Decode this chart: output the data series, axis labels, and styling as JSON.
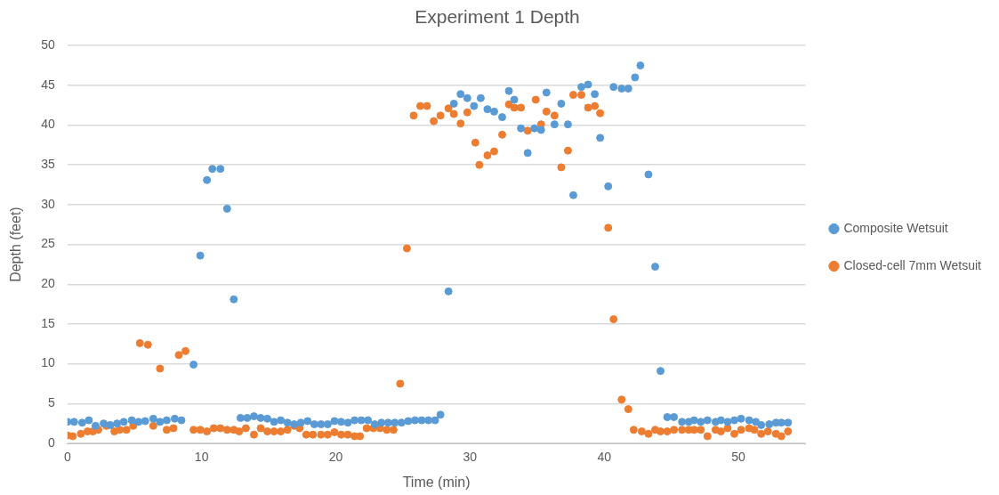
{
  "chart_data": {
    "type": "scatter",
    "title": "Experiment 1 Depth",
    "xlabel": "Time (min)",
    "ylabel": "Depth (feet)",
    "xlim": [
      0,
      55
    ],
    "xticks": [
      0,
      10,
      20,
      30,
      40,
      50
    ],
    "ylim": [
      0,
      50
    ],
    "yticks": [
      0,
      5,
      10,
      15,
      20,
      25,
      30,
      35,
      40,
      45,
      50
    ],
    "grid": "y",
    "legend": "right",
    "marker": "circle",
    "series": [
      {
        "name": "Composite Wetsuit",
        "color": "#5b9bd5",
        "x": [
          0,
          0.5,
          1.1,
          1.6,
          2.1,
          2.7,
          3.2,
          3.7,
          4.2,
          4.8,
          5.3,
          5.8,
          6.4,
          6.9,
          7.4,
          8.0,
          8.5,
          9.4,
          9.9,
          10.4,
          10.8,
          11.4,
          11.9,
          12.4,
          12.9,
          13.4,
          13.9,
          14.4,
          14.9,
          15.4,
          15.9,
          16.4,
          16.9,
          17.4,
          17.9,
          18.4,
          18.9,
          19.4,
          19.9,
          20.4,
          20.9,
          21.4,
          21.9,
          22.4,
          22.9,
          23.4,
          23.9,
          24.4,
          24.9,
          25.4,
          25.9,
          26.4,
          26.9,
          27.4,
          27.8,
          28.4,
          28.8,
          29.3,
          29.8,
          30.3,
          30.8,
          31.3,
          31.8,
          32.4,
          32.9,
          33.3,
          33.8,
          34.3,
          34.8,
          35.3,
          35.7,
          36.3,
          36.8,
          37.3,
          37.7,
          38.3,
          38.8,
          39.3,
          39.7,
          40.3,
          40.7,
          41.3,
          41.8,
          42.3,
          42.7,
          43.3,
          43.8,
          44.2,
          44.7,
          45.2,
          45.8,
          46.3,
          46.7,
          47.2,
          47.7,
          48.3,
          48.7,
          49.2,
          49.7,
          50.2,
          50.8,
          51.3,
          51.7,
          52.3,
          52.8,
          53.2,
          53.7
        ],
        "values": [
          2.7,
          2.7,
          2.6,
          2.9,
          2.2,
          2.5,
          2.3,
          2.5,
          2.7,
          2.9,
          2.7,
          2.8,
          3.1,
          2.7,
          2.9,
          3.1,
          2.9,
          9.9,
          23.6,
          33.1,
          34.5,
          34.5,
          29.5,
          18.1,
          3.2,
          3.2,
          3.4,
          3.2,
          3.1,
          2.7,
          2.9,
          2.6,
          2.4,
          2.6,
          2.8,
          2.4,
          2.4,
          2.4,
          2.8,
          2.7,
          2.6,
          2.9,
          2.9,
          2.9,
          2.4,
          2.6,
          2.6,
          2.6,
          2.6,
          2.8,
          2.9,
          2.9,
          2.9,
          2.9,
          3.6,
          19.1,
          42.7,
          43.9,
          43.4,
          42.4,
          43.4,
          42.0,
          41.7,
          41.0,
          44.3,
          43.2,
          39.6,
          36.5,
          39.6,
          39.4,
          44.1,
          40.1,
          42.7,
          40.1,
          31.2,
          44.8,
          45.1,
          43.9,
          38.4,
          32.3,
          44.8,
          44.6,
          44.6,
          46.0,
          47.5,
          33.8,
          22.2,
          9.1,
          3.3,
          3.3,
          2.7,
          2.7,
          2.9,
          2.7,
          2.9,
          2.7,
          2.9,
          2.7,
          2.9,
          3.1,
          2.9,
          2.7,
          2.3,
          2.4,
          2.6,
          2.6,
          2.6
        ]
      },
      {
        "name": "Closed-cell 7mm Wetsuit",
        "color": "#ed7d31",
        "x": [
          0,
          0.4,
          1.0,
          1.5,
          1.9,
          2.3,
          2.9,
          3.5,
          3.9,
          4.4,
          4.9,
          5.4,
          6.0,
          6.4,
          6.9,
          7.4,
          7.9,
          8.3,
          8.8,
          9.4,
          9.9,
          10.4,
          10.9,
          11.4,
          11.9,
          12.4,
          12.8,
          13.3,
          13.9,
          14.4,
          14.9,
          15.4,
          15.9,
          16.4,
          16.9,
          17.3,
          17.8,
          18.3,
          18.9,
          19.4,
          19.9,
          20.4,
          20.9,
          21.4,
          21.8,
          22.3,
          22.8,
          23.3,
          23.8,
          24.3,
          24.8,
          25.3,
          25.8,
          26.3,
          26.8,
          27.3,
          27.8,
          28.4,
          28.8,
          29.3,
          29.8,
          30.4,
          30.7,
          31.3,
          31.8,
          32.4,
          32.9,
          33.3,
          33.8,
          34.3,
          34.9,
          35.3,
          35.7,
          36.3,
          36.8,
          37.3,
          37.7,
          38.3,
          38.8,
          39.3,
          39.7,
          40.3,
          40.7,
          41.3,
          41.8,
          42.2,
          42.8,
          43.3,
          43.8,
          44.2,
          44.7,
          45.2,
          45.8,
          46.3,
          46.7,
          47.2,
          47.7,
          48.3,
          48.7,
          49.2,
          49.7,
          50.2,
          50.8,
          51.2,
          51.7,
          52.2,
          52.8,
          53.2,
          53.7
        ],
        "values": [
          1.0,
          0.9,
          1.2,
          1.5,
          1.5,
          1.7,
          2.2,
          1.5,
          1.7,
          1.7,
          2.2,
          12.6,
          12.4,
          2.2,
          9.4,
          1.7,
          1.9,
          11.1,
          11.6,
          1.7,
          1.7,
          1.5,
          1.9,
          1.9,
          1.7,
          1.7,
          1.5,
          1.9,
          1.1,
          1.9,
          1.5,
          1.5,
          1.5,
          1.7,
          2.2,
          1.9,
          1.1,
          1.1,
          1.1,
          1.1,
          1.4,
          1.1,
          1.1,
          0.9,
          0.9,
          1.9,
          1.9,
          1.9,
          1.7,
          1.7,
          7.5,
          24.5,
          41.2,
          42.4,
          42.4,
          40.5,
          41.2,
          42.1,
          41.4,
          40.2,
          41.6,
          37.8,
          35.0,
          36.2,
          36.7,
          38.8,
          42.6,
          42.2,
          42.2,
          39.3,
          43.2,
          40.1,
          41.7,
          41.2,
          34.7,
          36.8,
          43.8,
          43.8,
          42.2,
          42.4,
          41.5,
          27.1,
          15.6,
          5.5,
          4.3,
          1.7,
          1.5,
          1.2,
          1.7,
          1.5,
          1.5,
          1.7,
          1.7,
          1.7,
          1.7,
          1.7,
          0.9,
          1.7,
          1.5,
          1.9,
          1.2,
          1.7,
          1.9,
          1.7,
          1.2,
          1.5,
          1.2,
          0.9,
          1.5
        ]
      }
    ]
  }
}
